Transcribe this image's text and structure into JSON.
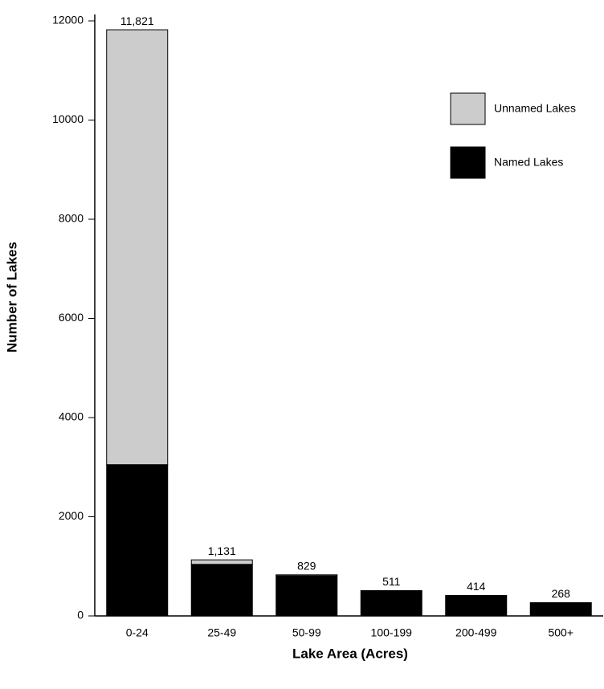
{
  "chart_data": {
    "type": "stacked-bar",
    "x_label": "Lake Area (Acres)",
    "y_label": "Number of Lakes",
    "categories": [
      "0-24",
      "25-49",
      "50-99",
      "100-199",
      "200-499",
      "500+"
    ],
    "series": [
      {
        "name": "Named Lakes",
        "color": "#000000",
        "values": [
          3050,
          1040,
          810,
          511,
          414,
          268
        ]
      },
      {
        "name": "Unnamed Lakes",
        "color": "#cccccc",
        "values": [
          8771,
          91,
          19,
          0,
          0,
          0
        ]
      }
    ],
    "totals": [
      11821,
      1131,
      829,
      511,
      414,
      268
    ],
    "total_labels": [
      "11,821",
      "1,131",
      "829",
      "511",
      "414",
      "268"
    ],
    "ylim": [
      0,
      12000
    ],
    "yticks": [
      0,
      2000,
      4000,
      6000,
      8000,
      10000,
      12000
    ],
    "grid": false
  }
}
